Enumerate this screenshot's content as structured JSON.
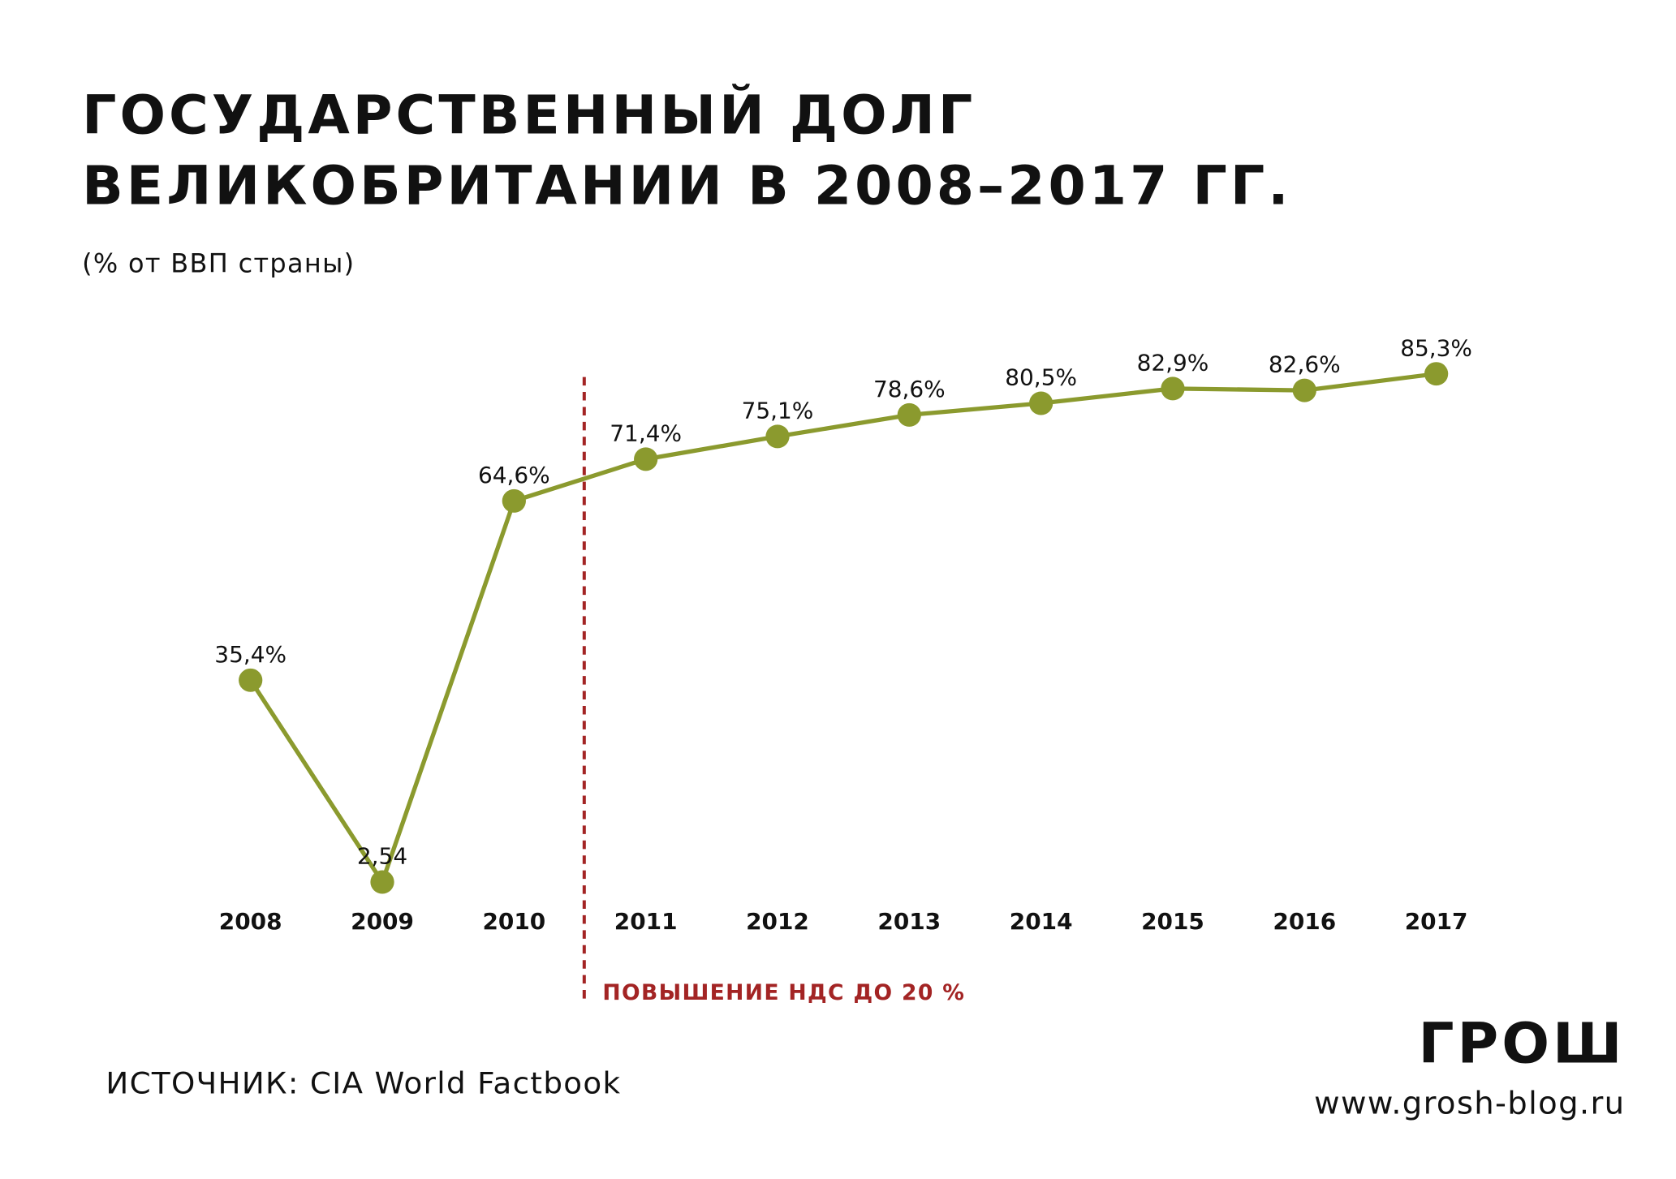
{
  "chart_data": {
    "type": "line",
    "title": [
      "ГОСУДАРСТВЕННЫЙ ДОЛГ",
      "ВЕЛИКОБРИТАНИИ В 2008–2017 ГГ."
    ],
    "subtitle": "(% от ВВП страны)",
    "categories": [
      "2008",
      "2009",
      "2010",
      "2011",
      "2012",
      "2013",
      "2014",
      "2015",
      "2016",
      "2017"
    ],
    "values": [
      35.4,
      2.54,
      64.6,
      71.4,
      75.1,
      78.6,
      80.5,
      82.9,
      82.6,
      85.3
    ],
    "value_labels": [
      "35,4%",
      "2,54",
      "64,6%",
      "71,4%",
      "75,1%",
      "78,6%",
      "80,5%",
      "82,9%",
      "82,6%",
      "85,3%"
    ],
    "color": "#8b9a2e",
    "annotation": {
      "label": "ПОВЫШЕНИЕ НДС ДО 20 %",
      "color": "#a32424"
    },
    "source": "ИСТОЧНИК: CIA World Factbook",
    "logo": "ГРОШ",
    "url": "www.grosh-blog.ru"
  }
}
